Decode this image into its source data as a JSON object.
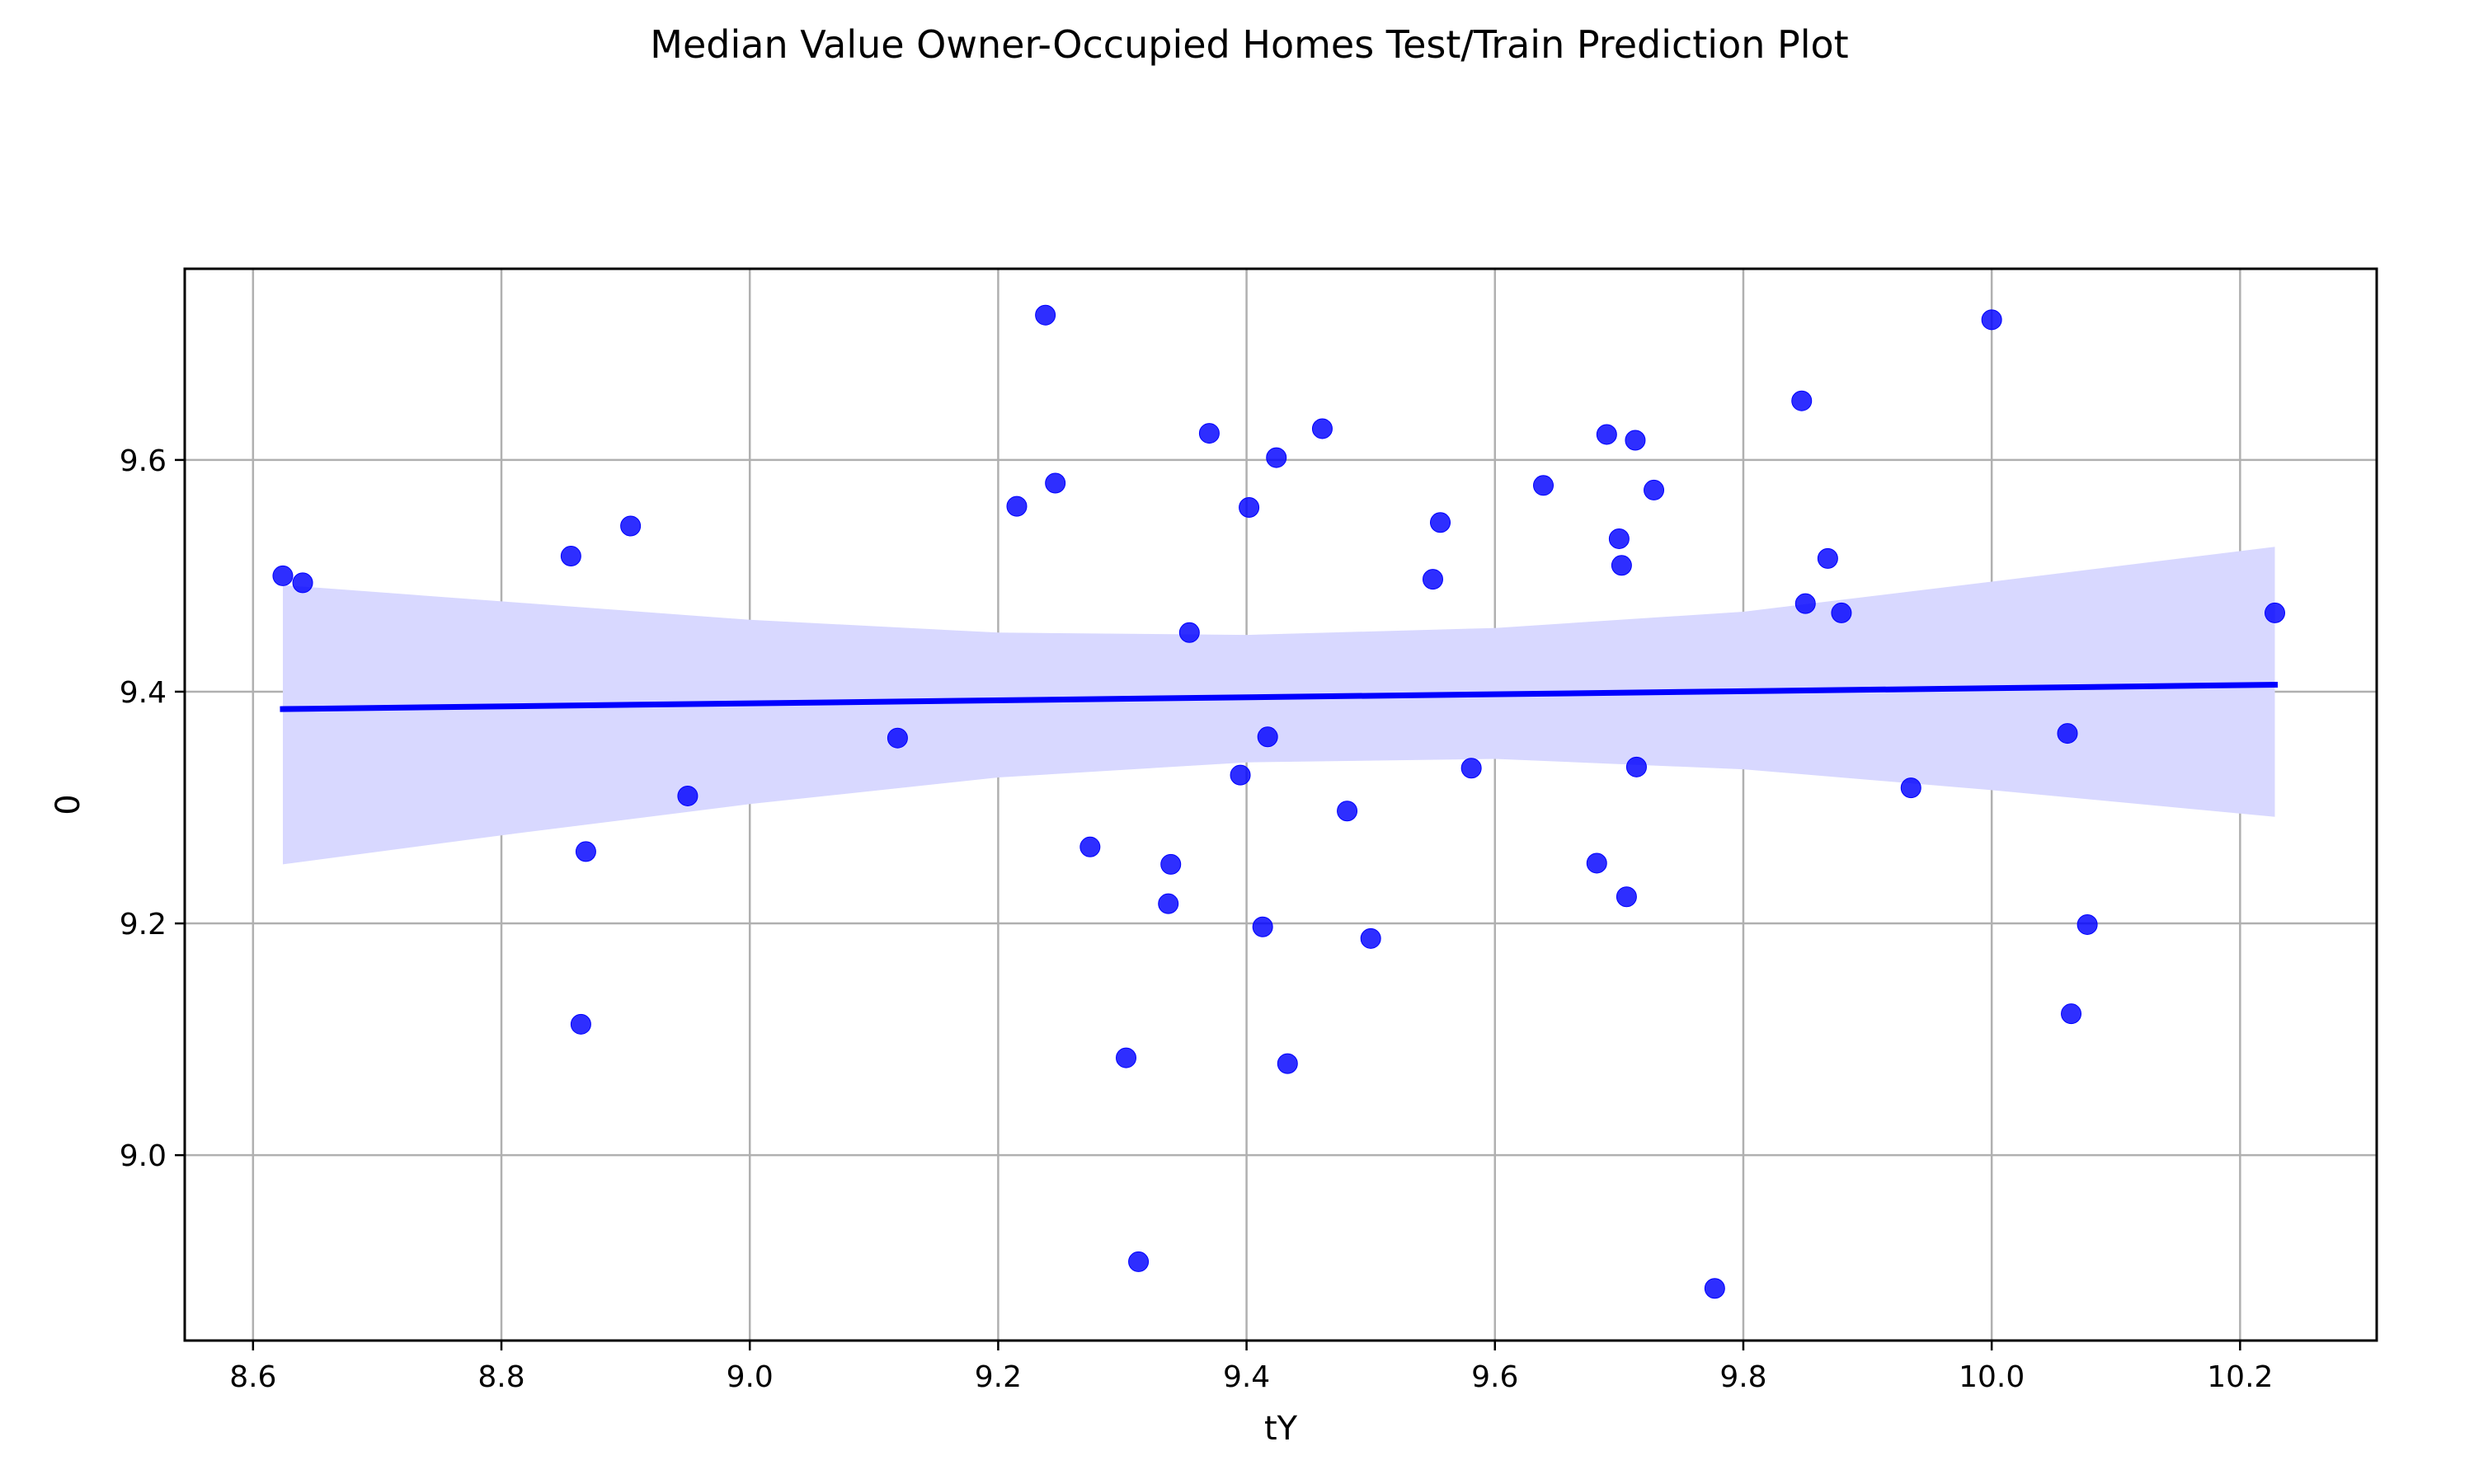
{
  "chart_data": {
    "type": "scatter",
    "title": "Median Value Owner-Occupied Homes Test/Train Prediction Plot",
    "xlabel": "tY",
    "ylabel": "0",
    "xlim": [
      8.545,
      10.31
    ],
    "ylim": [
      8.84,
      9.765
    ],
    "xticks": [
      8.6,
      8.8,
      9.0,
      9.2,
      9.4,
      9.6,
      9.8,
      10.0,
      10.2
    ],
    "xtick_labels": [
      "8.6",
      "8.8",
      "9.0",
      "9.2",
      "9.4",
      "9.6",
      "9.8",
      "10.0",
      "10.2"
    ],
    "yticks": [
      9.0,
      9.2,
      9.4,
      9.6
    ],
    "ytick_labels": [
      "9.0",
      "9.2",
      "9.4",
      "9.6"
    ],
    "grid": true,
    "legend": "none",
    "colors": {
      "points": "#0000ff",
      "line": "#0000ff",
      "band": "#d8d8ff",
      "grid": "#b0b0b0"
    },
    "points": [
      {
        "x": 8.624,
        "y": 9.5
      },
      {
        "x": 8.64,
        "y": 9.494
      },
      {
        "x": 8.856,
        "y": 9.517
      },
      {
        "x": 8.864,
        "y": 9.113
      },
      {
        "x": 8.868,
        "y": 9.262
      },
      {
        "x": 8.904,
        "y": 9.543
      },
      {
        "x": 8.95,
        "y": 9.31
      },
      {
        "x": 9.119,
        "y": 9.36
      },
      {
        "x": 9.215,
        "y": 9.56
      },
      {
        "x": 9.238,
        "y": 9.725
      },
      {
        "x": 9.246,
        "y": 9.58
      },
      {
        "x": 9.274,
        "y": 9.266
      },
      {
        "x": 9.303,
        "y": 9.084
      },
      {
        "x": 9.313,
        "y": 8.908
      },
      {
        "x": 9.337,
        "y": 9.217
      },
      {
        "x": 9.339,
        "y": 9.251
      },
      {
        "x": 9.354,
        "y": 9.451
      },
      {
        "x": 9.37,
        "y": 9.623
      },
      {
        "x": 9.395,
        "y": 9.328
      },
      {
        "x": 9.402,
        "y": 9.559
      },
      {
        "x": 9.413,
        "y": 9.197
      },
      {
        "x": 9.417,
        "y": 9.361
      },
      {
        "x": 9.424,
        "y": 9.602
      },
      {
        "x": 9.433,
        "y": 9.079
      },
      {
        "x": 9.461,
        "y": 9.627
      },
      {
        "x": 9.481,
        "y": 9.297
      },
      {
        "x": 9.5,
        "y": 9.187
      },
      {
        "x": 9.55,
        "y": 9.497
      },
      {
        "x": 9.556,
        "y": 9.546
      },
      {
        "x": 9.581,
        "y": 9.334
      },
      {
        "x": 9.639,
        "y": 9.578
      },
      {
        "x": 9.682,
        "y": 9.252
      },
      {
        "x": 9.69,
        "y": 9.622
      },
      {
        "x": 9.7,
        "y": 9.532
      },
      {
        "x": 9.702,
        "y": 9.509
      },
      {
        "x": 9.706,
        "y": 9.223
      },
      {
        "x": 9.713,
        "y": 9.617
      },
      {
        "x": 9.714,
        "y": 9.335
      },
      {
        "x": 9.728,
        "y": 9.574
      },
      {
        "x": 9.777,
        "y": 8.885
      },
      {
        "x": 9.847,
        "y": 9.651
      },
      {
        "x": 9.85,
        "y": 9.476
      },
      {
        "x": 9.868,
        "y": 9.515
      },
      {
        "x": 9.879,
        "y": 9.468
      },
      {
        "x": 9.935,
        "y": 9.317
      },
      {
        "x": 10.0,
        "y": 9.721
      },
      {
        "x": 10.061,
        "y": 9.364
      },
      {
        "x": 10.064,
        "y": 9.122
      },
      {
        "x": 10.077,
        "y": 9.199
      },
      {
        "x": 10.228,
        "y": 9.468
      }
    ],
    "regression_line": {
      "x": [
        8.624,
        10.228
      ],
      "y": [
        9.385,
        9.406
      ]
    },
    "confidence_band": {
      "x": [
        8.624,
        8.8,
        9.0,
        9.2,
        9.4,
        9.6,
        9.8,
        10.0,
        10.228
      ],
      "upper": [
        9.492,
        9.478,
        9.462,
        9.451,
        9.449,
        9.455,
        9.469,
        9.495,
        9.525
      ],
      "lower": [
        9.251,
        9.276,
        9.303,
        9.326,
        9.339,
        9.342,
        9.333,
        9.315,
        9.292
      ]
    }
  }
}
